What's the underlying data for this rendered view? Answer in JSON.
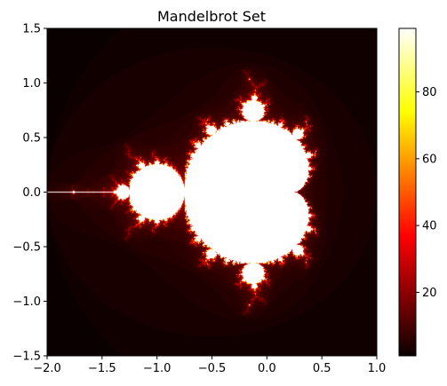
{
  "chart_data": {
    "type": "heatmap",
    "title": "Mandelbrot Set",
    "xlabel": "",
    "ylabel": "",
    "x_range": [
      -2.0,
      1.0
    ],
    "y_range": [
      -1.5,
      1.5
    ],
    "x_ticks": [
      -2.0,
      -1.5,
      -1.0,
      -0.5,
      0.0,
      0.5,
      1.0
    ],
    "x_tick_labels": [
      "−2.0",
      "−1.5",
      "−1.0",
      "−0.5",
      "0.0",
      "0.5",
      "1.0"
    ],
    "y_ticks": [
      1.5,
      1.0,
      0.5,
      0.0,
      -0.5,
      -1.0,
      -1.5
    ],
    "y_tick_labels": [
      "1.5",
      "1.0",
      "0.5",
      "0.0",
      "−0.5",
      "−1.0",
      "−1.5"
    ],
    "colormap": "hot",
    "max_iter": 100,
    "colorbar": {
      "range": [
        1,
        99
      ],
      "ticks": [
        20,
        40,
        60,
        80
      ],
      "tick_labels": [
        "20",
        "40",
        "60",
        "80"
      ]
    },
    "grid": false
  }
}
